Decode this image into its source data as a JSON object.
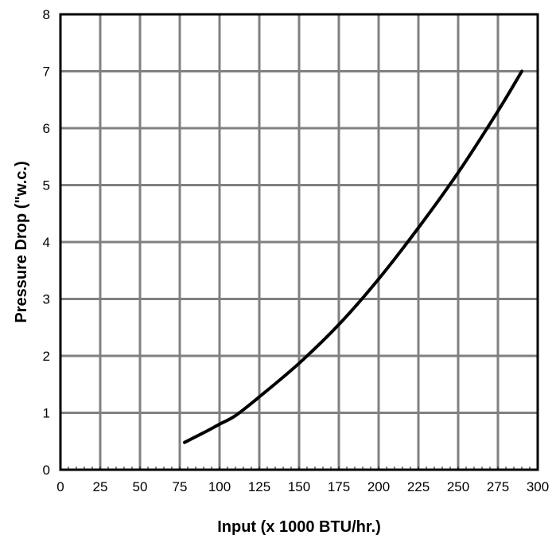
{
  "chart_data": {
    "type": "line",
    "title": "",
    "xlabel": "Input (x 1000 BTU/hr.)",
    "ylabel": "Pressure Drop (\"w.c.)",
    "xlim": [
      0,
      300
    ],
    "ylim": [
      0,
      8
    ],
    "xticks": [
      0,
      25,
      50,
      75,
      100,
      125,
      150,
      175,
      200,
      225,
      250,
      275,
      300
    ],
    "yticks": [
      0,
      1,
      2,
      3,
      4,
      5,
      6,
      7,
      8
    ],
    "grid": true,
    "legend": "none",
    "series": [
      {
        "x": [
          78,
          90,
          100,
          110,
          125,
          150,
          175,
          200,
          225,
          250,
          275,
          290
        ],
        "y": [
          0.48,
          0.65,
          0.8,
          0.95,
          1.28,
          1.87,
          2.55,
          3.35,
          4.25,
          5.22,
          6.3,
          7.0
        ],
        "color": "#000000"
      }
    ]
  }
}
